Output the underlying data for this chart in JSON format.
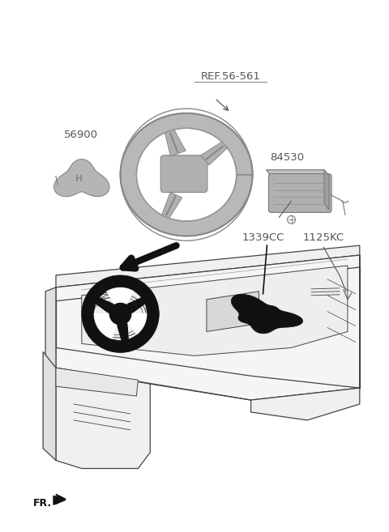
{
  "bg_color": "#ffffff",
  "labels": {
    "ref": "REF.56-561",
    "part1": "56900",
    "part2": "84530",
    "part3": "1339CC",
    "part4": "1125KC",
    "fr": "FR."
  },
  "text_color": "#555555",
  "dark_color": "#111111",
  "line_color": "#333333"
}
